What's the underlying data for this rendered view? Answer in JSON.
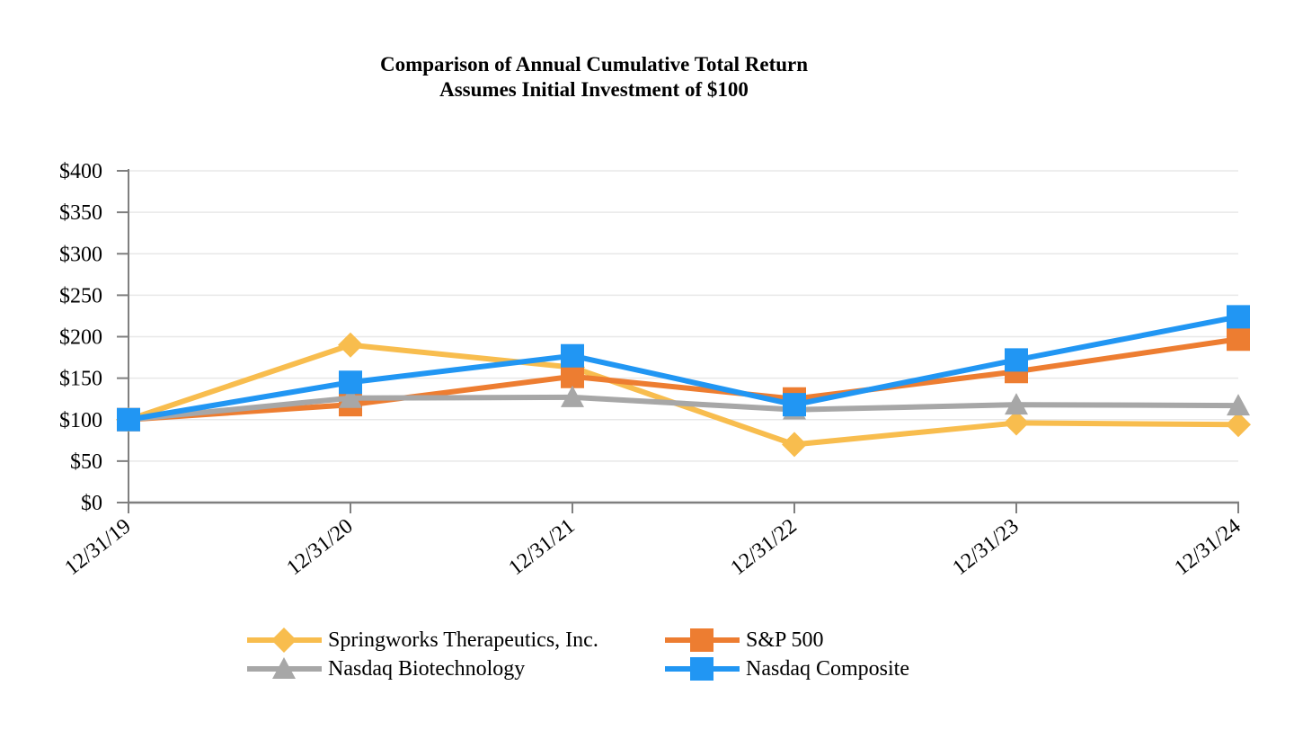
{
  "title": {
    "line1": "Comparison of Annual Cumulative Total Return",
    "line2": "Assumes Initial Investment of $100"
  },
  "chart_data": {
    "type": "line",
    "title": "Comparison of Annual Cumulative Total Return",
    "subtitle": "Assumes Initial Investment of $100",
    "x": [
      "12/31/19",
      "12/31/20",
      "12/31/21",
      "12/31/22",
      "12/31/23",
      "12/31/24"
    ],
    "y_ticks": [
      0,
      50,
      100,
      150,
      200,
      250,
      300,
      350,
      400
    ],
    "y_tick_labels": [
      "$0",
      "$50",
      "$100",
      "$150",
      "$200",
      "$250",
      "$300",
      "$350",
      "$400"
    ],
    "ylim": [
      0,
      400
    ],
    "grid": true,
    "legend_position": "bottom",
    "series": [
      {
        "name": "Springworks Therapeutics, Inc.",
        "marker": "diamond",
        "color": "#F8BD4E",
        "values": [
          100,
          190,
          163,
          70,
          96,
          94
        ]
      },
      {
        "name": "S&P 500",
        "marker": "square",
        "color": "#ED7D31",
        "values": [
          100,
          118,
          152,
          125,
          158,
          197
        ]
      },
      {
        "name": "Nasdaq Biotechnology",
        "marker": "triangle",
        "color": "#A7A7A7",
        "values": [
          100,
          126,
          127,
          112,
          118,
          117
        ]
      },
      {
        "name": "Nasdaq Composite",
        "marker": "square",
        "color": "#2196F3",
        "values": [
          100,
          145,
          177,
          118,
          172,
          224
        ]
      }
    ],
    "colors": {
      "axis": "#7F7F7F",
      "gridline": "#E8E8E8",
      "background": "#FFFFFF",
      "text": "#000000"
    }
  }
}
